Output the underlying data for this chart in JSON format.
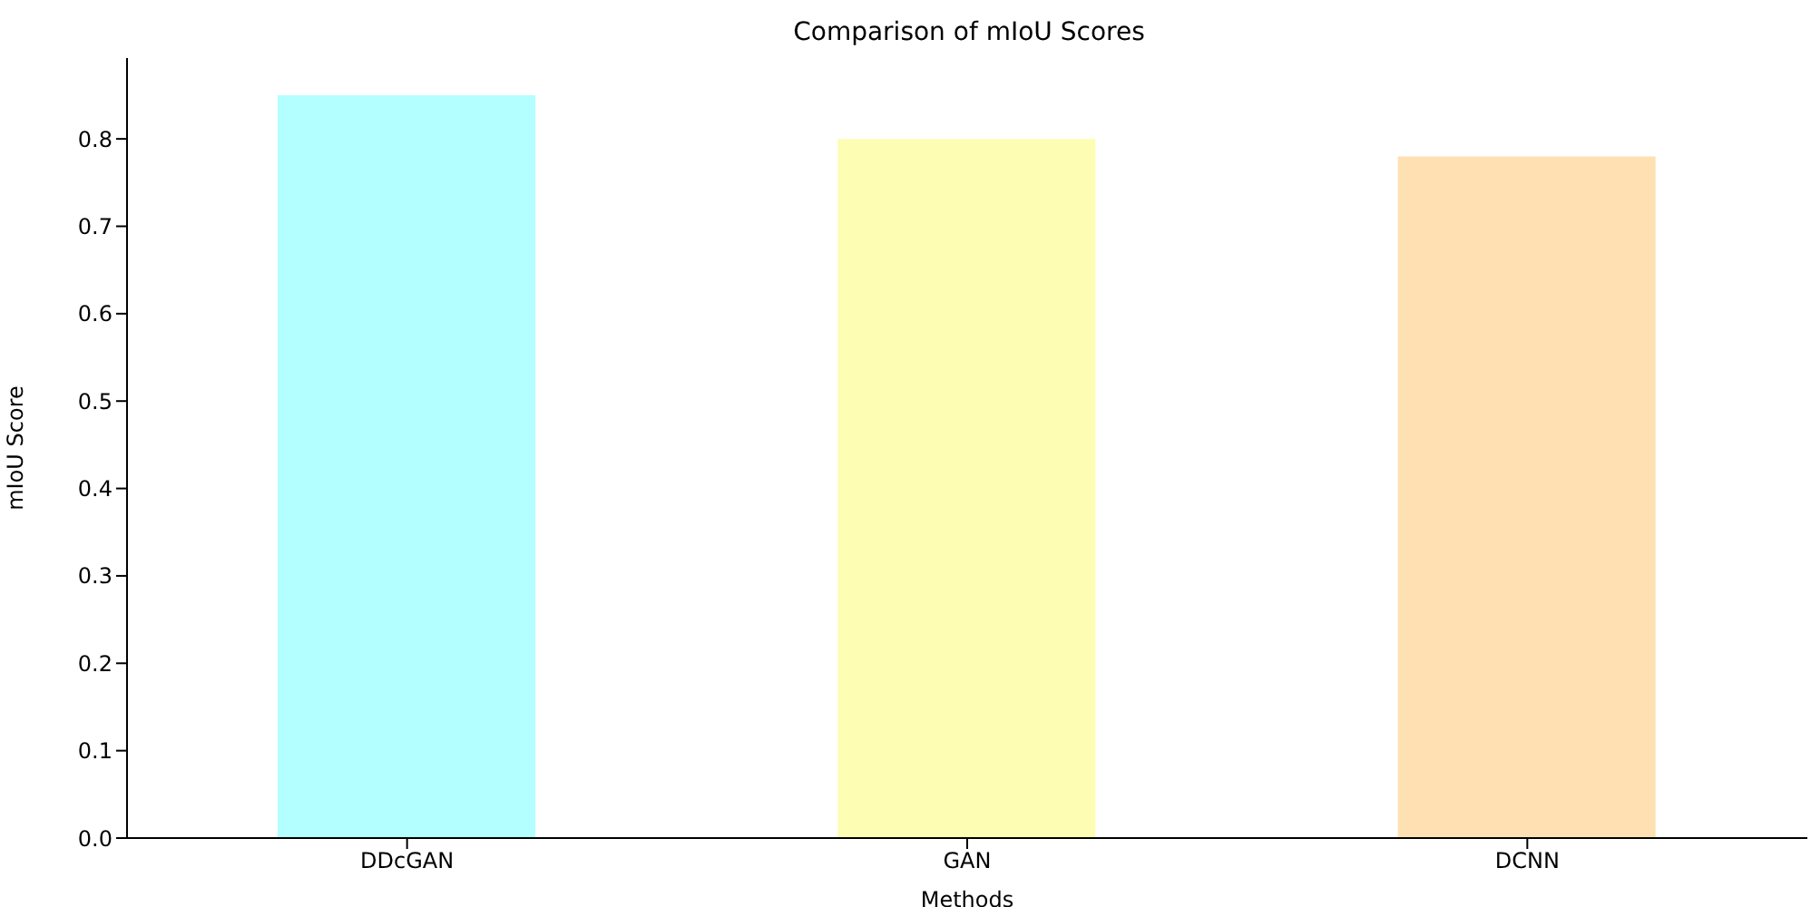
{
  "chart_data": {
    "type": "bar",
    "title": "Comparison of mIoU Scores",
    "xlabel": "Methods",
    "ylabel": "mIoU Score",
    "categories": [
      "DDcGAN",
      "GAN",
      "DCNN"
    ],
    "values": [
      0.85,
      0.8,
      0.78
    ],
    "colors": [
      "#b3ffff",
      "#fdfdb3",
      "#ffe0b2"
    ],
    "ylim": [
      0,
      0.8925
    ],
    "yticks": [
      {
        "value": 0,
        "label": "0.0"
      },
      0.1,
      0.2,
      0.3,
      0.4,
      0.5,
      0.6,
      0.7,
      0.8
    ],
    "grid": false,
    "legend": false
  }
}
